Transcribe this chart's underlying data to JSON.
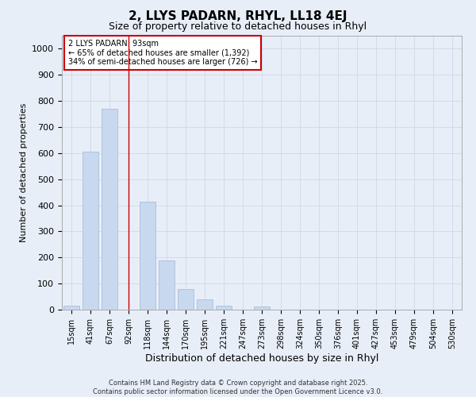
{
  "title1": "2, LLYS PADARN, RHYL, LL18 4EJ",
  "title2": "Size of property relative to detached houses in Rhyl",
  "xlabel": "Distribution of detached houses by size in Rhyl",
  "ylabel": "Number of detached properties",
  "categories": [
    "15sqm",
    "41sqm",
    "67sqm",
    "92sqm",
    "118sqm",
    "144sqm",
    "170sqm",
    "195sqm",
    "221sqm",
    "247sqm",
    "273sqm",
    "298sqm",
    "324sqm",
    "350sqm",
    "376sqm",
    "401sqm",
    "427sqm",
    "453sqm",
    "479sqm",
    "504sqm",
    "530sqm"
  ],
  "values": [
    15,
    605,
    770,
    0,
    415,
    190,
    78,
    40,
    15,
    0,
    12,
    0,
    0,
    0,
    0,
    0,
    0,
    0,
    0,
    0,
    0
  ],
  "bar_color": "#c8d8ee",
  "bar_edge_color": "#aabfdb",
  "grid_color": "#d0d8e8",
  "bg_color": "#e8eef8",
  "red_line_x": 3.0,
  "annotation_text": "2 LLYS PADARN: 93sqm\n← 65% of detached houses are smaller (1,392)\n34% of semi-detached houses are larger (726) →",
  "annotation_box_color": "#ffffff",
  "annotation_box_edge": "#cc0000",
  "ylim": [
    0,
    1050
  ],
  "yticks": [
    0,
    100,
    200,
    300,
    400,
    500,
    600,
    700,
    800,
    900,
    1000
  ],
  "footer1": "Contains HM Land Registry data © Crown copyright and database right 2025.",
  "footer2": "Contains public sector information licensed under the Open Government Licence v3.0.",
  "title1_fontsize": 11,
  "title2_fontsize": 9,
  "xlabel_fontsize": 9,
  "ylabel_fontsize": 8,
  "tick_fontsize": 7,
  "ann_fontsize": 7,
  "footer_fontsize": 6
}
